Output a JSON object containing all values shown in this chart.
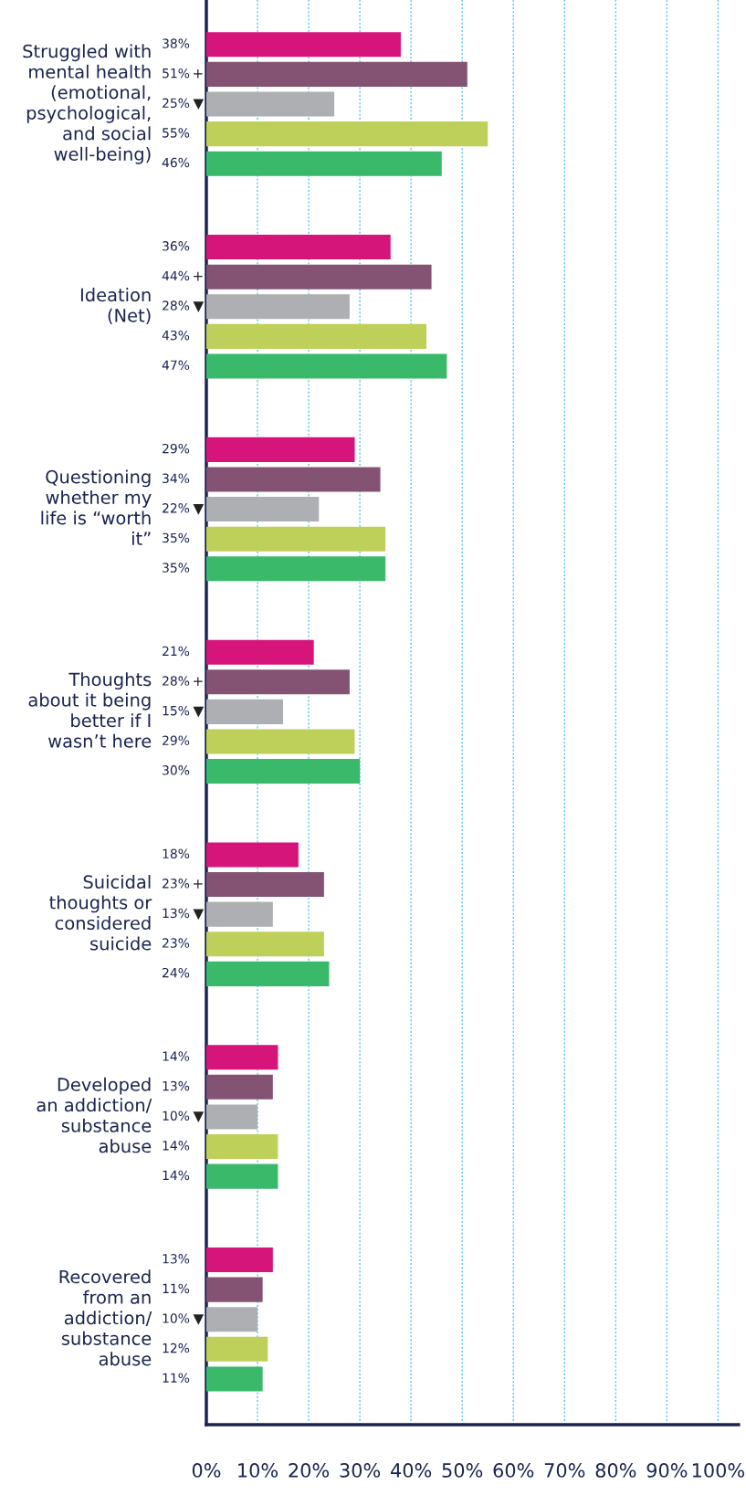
{
  "chart_data": {
    "type": "bar",
    "orientation": "horizontal",
    "categories": [
      "Struggled with\nmental health\n(emotional,\npsychological,\nand social\nwell-being)",
      "Ideation\n(Net)",
      "Questioning\nwhether my\nlife is “worth\nit”",
      "Thoughts\nabout it being\nbetter if I\nwasn’t here",
      "Suicidal\nthoughts or\nconsidered\nsuicide",
      "Developed\nan addiction/\nsubstance\nabuse",
      "Recovered\nfrom an\naddiction/\nsubstance\nabuse"
    ],
    "series": [
      {
        "color": "#d6157a",
        "values": [
          38,
          36,
          29,
          21,
          18,
          14,
          13
        ],
        "value_labels": [
          "38%",
          "36%",
          "29%",
          "21%",
          "18%",
          "14%",
          "13%"
        ]
      },
      {
        "color": "#845374",
        "values": [
          51,
          44,
          34,
          28,
          23,
          13,
          11
        ],
        "value_labels": [
          "51% +",
          "44% +",
          "34%",
          "28% +",
          "23% +",
          "13%",
          "11%"
        ]
      },
      {
        "color": "#aeafb3",
        "values": [
          25,
          28,
          22,
          15,
          13,
          10,
          10
        ],
        "value_labels": [
          "25% ▼",
          "28% ▼",
          "22% ▼",
          "15% ▼",
          "13% ▼",
          "10% ▼",
          "10% ▼"
        ]
      },
      {
        "color": "#bfd05a",
        "values": [
          55,
          43,
          35,
          29,
          23,
          14,
          12
        ],
        "value_labels": [
          "55%",
          "43%",
          "35%",
          "29%",
          "23%",
          "14%",
          "12%"
        ]
      },
      {
        "color": "#3ab96b",
        "values": [
          46,
          47,
          35,
          30,
          24,
          14,
          11
        ],
        "value_labels": [
          "46%",
          "47%",
          "35%",
          "30%",
          "24%",
          "14%",
          "11%"
        ]
      }
    ],
    "xlim": [
      0,
      104
    ],
    "xticks": [
      {
        "value": 0,
        "label": "0%"
      },
      {
        "value": 10,
        "label": "10%"
      },
      {
        "value": 20,
        "label": "20%"
      },
      {
        "value": 30,
        "label": "30%"
      },
      {
        "value": 40,
        "label": "40%"
      },
      {
        "value": 50,
        "label": "50%"
      },
      {
        "value": 60,
        "label": "60%"
      },
      {
        "value": 70,
        "label": "70%"
      },
      {
        "value": 80,
        "label": "80%"
      },
      {
        "value": 90,
        "label": "90%"
      },
      {
        "value": 100,
        "label": "100%"
      }
    ],
    "grid": "x"
  }
}
